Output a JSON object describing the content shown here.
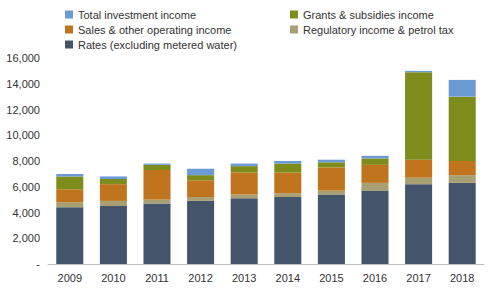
{
  "chart_data": {
    "type": "bar",
    "stacked": true,
    "grid": false,
    "legend": "top",
    "categories": [
      "2009",
      "2010",
      "2011",
      "2012",
      "2013",
      "2014",
      "2015",
      "2016",
      "2017",
      "2018"
    ],
    "series": [
      {
        "name": "Rates (excluding metered water)",
        "color": "#44546a",
        "values": [
          4400,
          4500,
          4700,
          4900,
          5100,
          5200,
          5400,
          5700,
          6200,
          6300
        ]
      },
      {
        "name": "Regulatory income & petrol tax",
        "color": "#a89f72",
        "values": [
          400,
          400,
          300,
          300,
          300,
          300,
          300,
          600,
          500,
          600
        ]
      },
      {
        "name": "Sales & other operating income",
        "color": "#c0741e",
        "values": [
          1000,
          1300,
          2300,
          1300,
          1700,
          1600,
          1800,
          1400,
          1400,
          1100
        ]
      },
      {
        "name": "Grants & subsidies income",
        "color": "#7e8c1c",
        "values": [
          1000,
          400,
          400,
          400,
          500,
          700,
          400,
          500,
          6800,
          5000
        ]
      },
      {
        "name": "Total investment income",
        "color": "#6a9bd4",
        "values": [
          200,
          200,
          100,
          500,
          200,
          200,
          200,
          200,
          100,
          1300
        ]
      }
    ],
    "ylim": [
      0,
      16000
    ],
    "yticks": [
      {
        "value": 0,
        "label": "-"
      },
      {
        "value": 2000,
        "label": "2,000"
      },
      {
        "value": 4000,
        "label": "4,000"
      },
      {
        "value": 6000,
        "label": "6,000"
      },
      {
        "value": 8000,
        "label": "8,000"
      },
      {
        "value": 10000,
        "label": "10,000"
      },
      {
        "value": 12000,
        "label": "12,000"
      },
      {
        "value": 14000,
        "label": "14,000"
      },
      {
        "value": 16000,
        "label": "16,000"
      }
    ]
  }
}
